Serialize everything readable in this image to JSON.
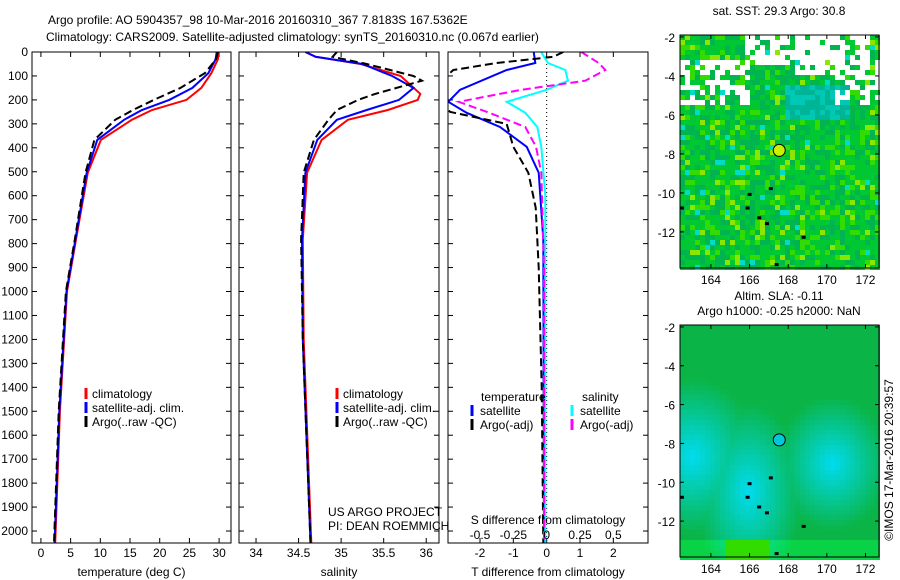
{
  "title": {
    "line1": "Argo profile: AO 5904357_98 10-Mar-2016 20160310_367 7.8183S 167.5362E",
    "line2": "Climatology: CARS2009. Satellite-adjusted climatology: synTS_20160310.nc (0.067d earlier)"
  },
  "colors": {
    "climatology": "#ff0000",
    "satellite": "#0000ff",
    "argo": "#000000",
    "sal_satellite": "#00ffff",
    "sal_argo": "#ff00ff"
  },
  "chart_data": [
    {
      "type": "line",
      "id": "temperature",
      "xlabel": "temperature (deg C)",
      "ylabel": "depth",
      "xlim": [
        -1.5,
        32
      ],
      "ylim": [
        2050,
        0
      ],
      "xticks": [
        0,
        5,
        10,
        15,
        20,
        25,
        30
      ],
      "yticks": [
        0,
        100,
        200,
        300,
        400,
        500,
        600,
        700,
        800,
        900,
        1000,
        1100,
        1200,
        1300,
        1400,
        1500,
        1600,
        1700,
        1800,
        1900,
        2000
      ],
      "legend": [
        "climatology",
        "satellite-adj. clim.",
        "Argo(..raw -QC)"
      ],
      "series": [
        {
          "name": "climatology",
          "color": "#ff0000",
          "dash": false,
          "depth": [
            0,
            30,
            88,
            150,
            200,
            242,
            283,
            367,
            504,
            783,
            1000,
            1500,
            2050
          ],
          "values": [
            29.9,
            29.8,
            28.7,
            27,
            24.5,
            18.7,
            15.3,
            10.1,
            7.9,
            5.9,
            4.4,
            3.2,
            2.4
          ]
        },
        {
          "name": "satellite-adj. clim.",
          "color": "#0000ff",
          "dash": false,
          "depth": [
            0,
            30,
            88,
            150,
            200,
            242,
            283,
            367,
            504,
            783,
            1000,
            1500,
            2050
          ],
          "values": [
            29.6,
            29.4,
            28.2,
            25.5,
            21.6,
            17,
            14,
            9.5,
            7.7,
            5.8,
            4.3,
            3.1,
            2.3
          ]
        },
        {
          "name": "Argo(..raw -QC)",
          "color": "#000000",
          "dash": true,
          "depth": [
            0,
            30,
            88,
            150,
            200,
            242,
            283,
            367,
            504,
            783,
            1000,
            1500,
            2050
          ],
          "values": [
            29.8,
            29.5,
            27.6,
            23.5,
            19,
            15.5,
            12.5,
            9,
            7.5,
            5.7,
            4.2,
            3,
            2.2
          ]
        }
      ]
    },
    {
      "type": "line",
      "id": "salinity",
      "xlabel": "salinity",
      "xlim": [
        33.8,
        36.15
      ],
      "ylim": [
        2050,
        0
      ],
      "xticks": [
        34,
        34.5,
        35,
        35.5,
        36
      ],
      "legend": [
        "climatology",
        "satellite-adj. clim.",
        "Argo(..raw -QC)"
      ],
      "annotation": [
        "US ARGO PROJECT",
        "PI: DEAN ROEMMICH"
      ],
      "series": [
        {
          "name": "climatology",
          "color": "#ff0000",
          "dash": false,
          "depth": [
            0,
            20,
            50,
            100,
            175,
            200,
            242,
            283,
            367,
            504,
            783,
            1200,
            2050
          ],
          "values": [
            34.58,
            34.7,
            35.23,
            35.7,
            35.93,
            35.9,
            35.55,
            35.08,
            34.77,
            34.6,
            34.55,
            34.56,
            34.65
          ]
        },
        {
          "name": "satellite-adj. clim.",
          "color": "#0000ff",
          "dash": false,
          "depth": [
            0,
            20,
            50,
            100,
            150,
            200,
            242,
            283,
            367,
            504,
            783,
            1200,
            2050
          ],
          "values": [
            34.58,
            34.7,
            35.25,
            35.6,
            35.85,
            35.68,
            35.3,
            34.95,
            34.72,
            34.58,
            34.54,
            34.55,
            34.64
          ]
        },
        {
          "name": "Argo(..raw -QC)",
          "color": "#000000",
          "dash": true,
          "depth": [
            0,
            20,
            50,
            100,
            120,
            175,
            200,
            242,
            283,
            367,
            504,
            783,
            1200,
            2050
          ],
          "values": [
            34.95,
            34.9,
            35.3,
            35.85,
            35.95,
            35.4,
            35.2,
            34.95,
            34.85,
            34.68,
            34.56,
            34.53,
            34.55,
            34.64
          ]
        }
      ]
    },
    {
      "type": "line",
      "id": "difference",
      "xlabel": "T difference from climatology",
      "x2label": "S difference from climatology",
      "xlim": [
        -2.96,
        3.04
      ],
      "x2lim": [
        -0.74,
        0.76
      ],
      "ylim": [
        2050,
        0
      ],
      "xticks": [
        -2,
        -1,
        0,
        1,
        2
      ],
      "x2ticks": [
        "-0.5",
        "-0.25",
        "0",
        "0.25",
        "0.5"
      ],
      "x2tick_values": [
        -0.5,
        -0.25,
        0,
        0.25,
        0.5
      ],
      "legend": {
        "temperature_heading": "temperature",
        "salinity_heading": "salinity",
        "satellite": "satellite",
        "argo": "Argo(-adj)"
      },
      "series": [
        {
          "name": "T satellite",
          "axis": "T",
          "color": "#0000ff",
          "dash": false,
          "depth": [
            0,
            46,
            75,
            158,
            208,
            254,
            313,
            396,
            504,
            783,
            2050
          ],
          "values": [
            -0.39,
            -0.34,
            -1.2,
            -2.6,
            -2.95,
            -2.4,
            -1.4,
            -0.6,
            -0.24,
            -0.1,
            -0.08
          ]
        },
        {
          "name": "T Argo(-adj)",
          "axis": "T",
          "color": "#000000",
          "dash": true,
          "depth": [
            0,
            20,
            46,
            75,
            100,
            230,
            250,
            300,
            396,
            504,
            650,
            900,
            1400,
            2050
          ],
          "values": [
            0.5,
            0.2,
            -1.5,
            -2.8,
            -3.0,
            -3.0,
            -2.9,
            -1.2,
            -1.0,
            -0.55,
            -0.33,
            -0.24,
            -0.15,
            -0.1
          ]
        },
        {
          "name": "S satellite",
          "axis": "S",
          "color": "#00ffff",
          "dash": false,
          "depth": [
            0,
            20,
            46,
            75,
            120,
            158,
            208,
            254,
            313,
            396,
            600,
            2050
          ],
          "values": [
            -0.04,
            -0.02,
            0.01,
            0.14,
            0.16,
            0.0,
            -0.3,
            -0.16,
            -0.07,
            -0.04,
            -0.01,
            -0.01
          ]
        },
        {
          "name": "S Argo(-adj)",
          "axis": "S",
          "color": "#ff00ff",
          "dash": true,
          "depth": [
            0,
            46,
            75,
            120,
            158,
            208,
            254,
            313,
            396,
            504,
            900,
            2050
          ],
          "values": [
            0.26,
            0.39,
            0.44,
            0.29,
            -0.19,
            -0.66,
            -0.43,
            -0.16,
            -0.08,
            -0.04,
            -0.02,
            -0.02
          ]
        }
      ]
    },
    {
      "type": "heatmap",
      "id": "sst-map",
      "title": "sat. SST: 29.3 Argo: 30.8",
      "xlim": [
        162.4,
        172.7
      ],
      "ylim": [
        -13.85,
        -1.9
      ],
      "xticks": [
        164,
        166,
        168,
        170,
        172
      ],
      "yticks": [
        -2,
        -4,
        -6,
        -8,
        -10,
        -12
      ],
      "argo_position": {
        "lon": 167.5362,
        "lat": -7.8183
      }
    },
    {
      "type": "heatmap",
      "id": "sla-map",
      "title": "Altim. SLA: -0.11",
      "subtitle": "Argo h1000: -0.25 h2000: NaN",
      "xlim": [
        162.4,
        172.7
      ],
      "ylim": [
        -13.85,
        -1.9
      ],
      "xticks": [
        164,
        166,
        168,
        170,
        172
      ],
      "yticks": [
        -2,
        -4,
        -6,
        -8,
        -10,
        -12
      ],
      "argo_position": {
        "lon": 167.5362,
        "lat": -7.8183
      }
    }
  ],
  "credit": "©IMOS 17-Mar-2016 20:39:57"
}
